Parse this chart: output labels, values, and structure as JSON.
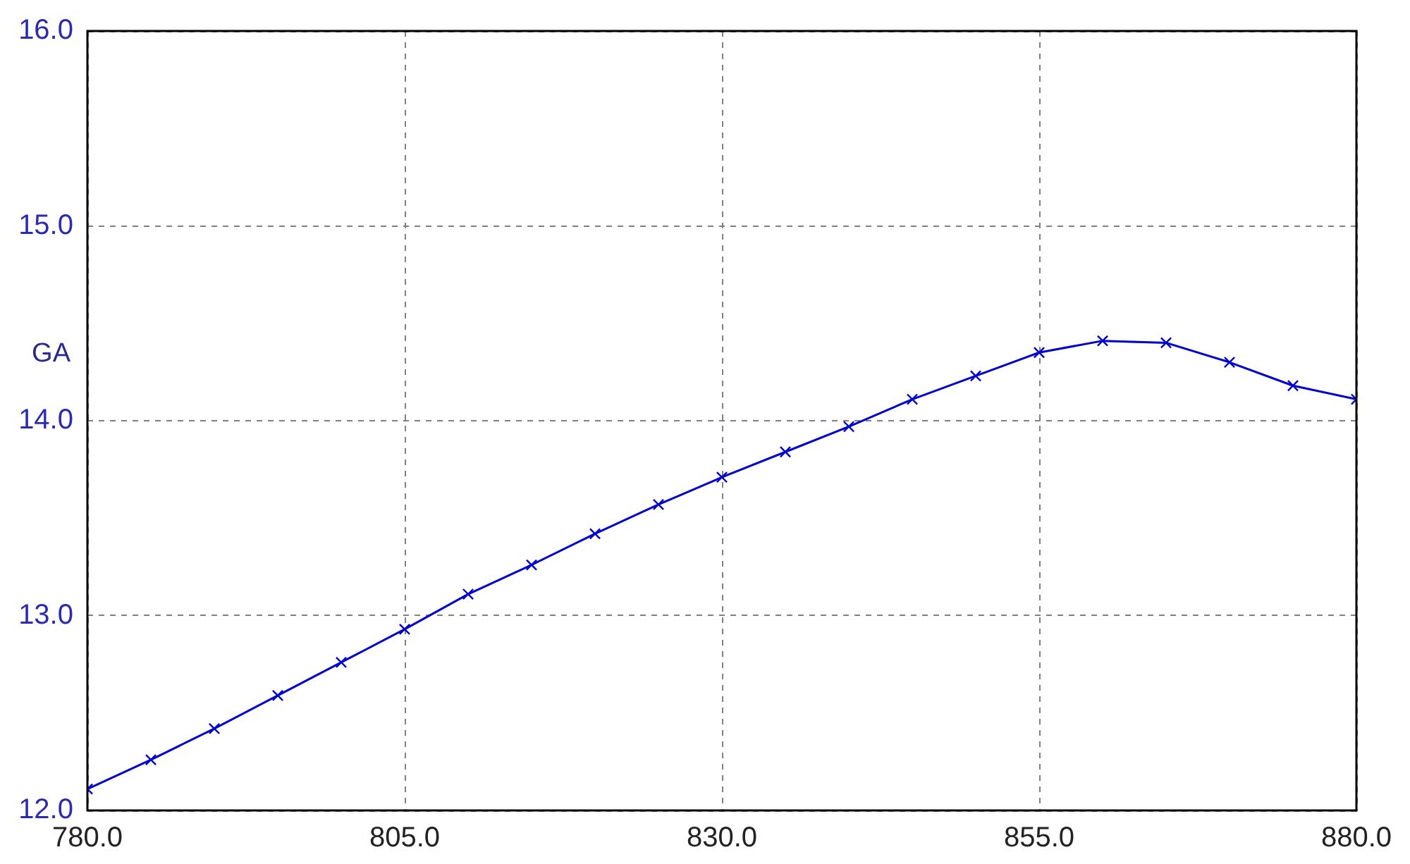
{
  "chart_data": {
    "type": "line",
    "ylabel": "GA",
    "x": [
      780,
      785,
      790,
      795,
      800,
      805,
      810,
      815,
      820,
      825,
      830,
      835,
      840,
      845,
      850,
      855,
      860,
      865,
      870,
      875,
      880
    ],
    "series": [
      {
        "color": "#0000cc",
        "values": [
          12.11,
          12.26,
          12.42,
          12.59,
          12.76,
          12.93,
          13.11,
          13.26,
          13.42,
          13.57,
          13.71,
          13.84,
          13.97,
          14.11,
          14.23,
          14.35,
          14.41,
          14.4,
          14.3,
          14.18,
          14.11
        ]
      }
    ],
    "xlim": [
      780,
      880
    ],
    "xticks": [
      {
        "value": 780,
        "label": "780.0"
      },
      {
        "value": 805,
        "label": "805.0"
      },
      {
        "value": 830,
        "label": "830.0"
      },
      {
        "value": 855,
        "label": "855.0"
      },
      {
        "value": 880,
        "label": "880.0"
      }
    ],
    "ylim": [
      12,
      16
    ],
    "yticks": [
      {
        "value": 12,
        "label": "12.0"
      },
      {
        "value": 13,
        "label": "13.0"
      },
      {
        "value": 14,
        "label": "14.0"
      },
      {
        "value": 15,
        "label": "15.0"
      },
      {
        "value": 16,
        "label": "16.0"
      }
    ],
    "grid": true,
    "marker": "cross",
    "line_style": "solid"
  }
}
